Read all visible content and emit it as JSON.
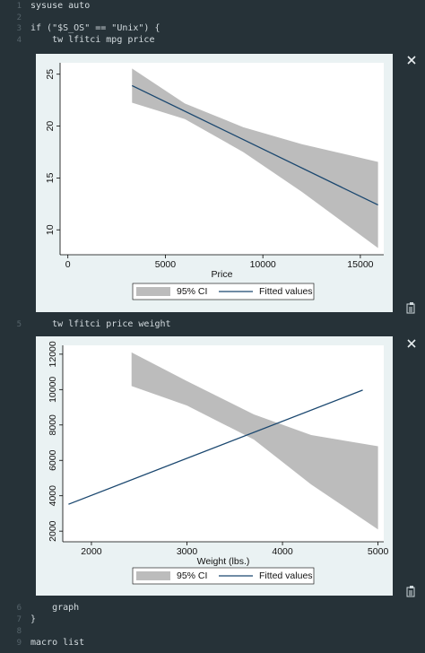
{
  "code": [
    {
      "number": "1",
      "text": "sysuse auto"
    },
    {
      "number": "2"
    },
    {
      "number": "3",
      "text": "if (\"$S_OS\" == \"Unix\") {"
    },
    {
      "number": "4",
      "text": "    tw lfitci mpg price"
    },
    {
      "number": "5",
      "text": "    tw lfitci price weight"
    },
    {
      "number": "6",
      "text": "    graph"
    },
    {
      "number": "7",
      "text": "}"
    },
    {
      "number": "8"
    },
    {
      "number": "9",
      "text": "macro list"
    }
  ],
  "chart_data": [
    {
      "type": "line",
      "x_label": "Price",
      "xlim": [
        -400,
        16200
      ],
      "ylim": [
        7.6,
        26.1
      ],
      "xticks": [
        0,
        5000,
        10000,
        15000
      ],
      "yticks": [
        10,
        15,
        20,
        25
      ],
      "legend": "bottom",
      "series": [
        {
          "name": "95% CI",
          "type": "area",
          "color": "#bcbcbc",
          "x": [
            3291,
            6000,
            9000,
            12000,
            15906
          ],
          "values": [
            25.55,
            22.18,
            19.89,
            18.26,
            16.55
          ],
          "lower": [
            22.25,
            20.68,
            17.49,
            13.66,
            8.25
          ]
        },
        {
          "name": "Fitted values",
          "type": "line",
          "color": "#1a476f",
          "x": [
            3291,
            15906
          ],
          "values": [
            23.9,
            12.4
          ]
        }
      ]
    },
    {
      "type": "line",
      "x_label": "Weight (lbs.)",
      "xlim": [
        1700,
        5060
      ],
      "ylim": [
        1400,
        12500
      ],
      "xticks": [
        2000,
        3000,
        4000,
        5000
      ],
      "yticks": [
        2000,
        4000,
        6000,
        8000,
        10000,
        12000
      ],
      "legend": "bottom",
      "series": [
        {
          "name": "95% CI",
          "type": "area",
          "color": "#bcbcbc",
          "x": [
            2420,
            3000,
            3700,
            4300,
            5000
          ],
          "values": [
            12100,
            10480,
            8600,
            7430,
            6800
          ],
          "lower": [
            10200,
            9100,
            7180,
            4640,
            2100
          ]
        },
        {
          "name": "Fitted values",
          "type": "line",
          "color": "#1a476f",
          "x": [
            1760,
            4840
          ],
          "values": [
            3520,
            9970
          ]
        }
      ]
    }
  ]
}
